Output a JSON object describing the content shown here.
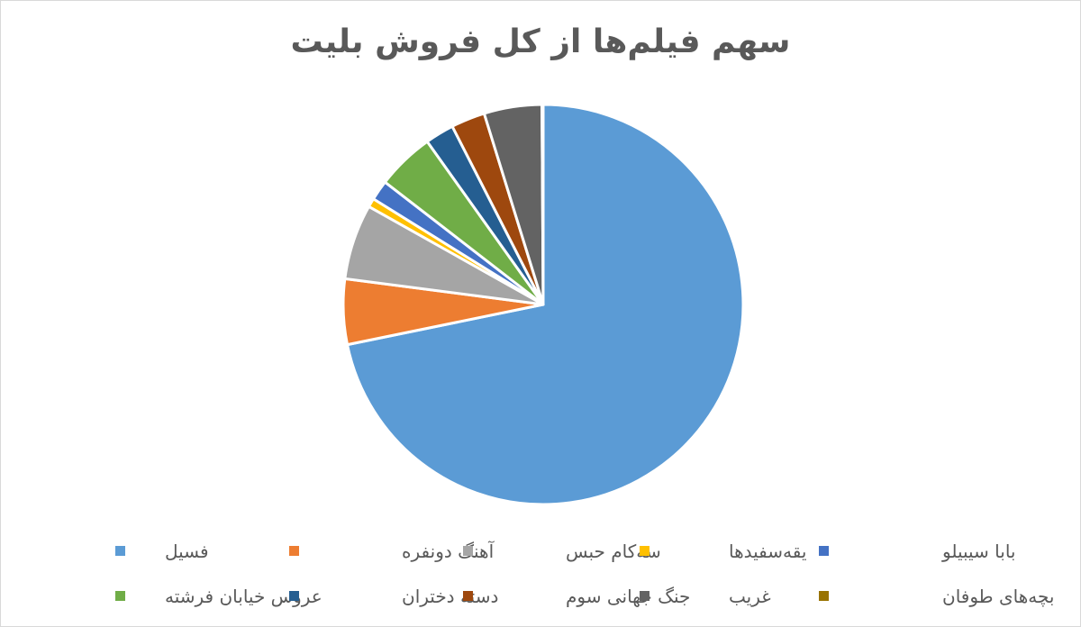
{
  "chart_data": {
    "type": "pie",
    "title": "سهم فیلم‌ها از کل فروش بلیت",
    "slices": [
      {
        "label": "فسیل",
        "value": 70.7,
        "color": "#5b9bd5"
      },
      {
        "label": "آهنگ دونفره",
        "value": 5.2,
        "color": "#ed7d31"
      },
      {
        "label": "سه‌کام حبس",
        "value": 6.0,
        "color": "#a5a5a5"
      },
      {
        "label": "یقه‌سفیدها",
        "value": 0.7,
        "color": "#ffc000"
      },
      {
        "label": "بابا سیبیلو",
        "value": 1.6,
        "color": "#4472c4"
      },
      {
        "label": "عروس خیابان فرشته",
        "value": 4.6,
        "color": "#70ad47"
      },
      {
        "label": "دسته دختران",
        "value": 2.3,
        "color": "#255e91"
      },
      {
        "label": "جنگ جهانی سوم",
        "value": 2.7,
        "color": "#9e480e"
      },
      {
        "label": "غریب",
        "value": 4.6,
        "color": "#636363"
      },
      {
        "label": "بچه‌های طوفان",
        "value": 0.1,
        "color": "#997300"
      }
    ],
    "legend_position": "bottom"
  }
}
